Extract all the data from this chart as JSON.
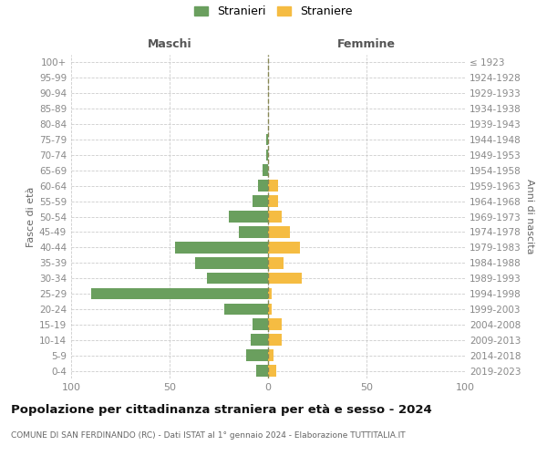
{
  "age_groups": [
    "0-4",
    "5-9",
    "10-14",
    "15-19",
    "20-24",
    "25-29",
    "30-34",
    "35-39",
    "40-44",
    "45-49",
    "50-54",
    "55-59",
    "60-64",
    "65-69",
    "70-74",
    "75-79",
    "80-84",
    "85-89",
    "90-94",
    "95-99",
    "100+"
  ],
  "birth_years": [
    "2019-2023",
    "2014-2018",
    "2009-2013",
    "2004-2008",
    "1999-2003",
    "1994-1998",
    "1989-1993",
    "1984-1988",
    "1979-1983",
    "1974-1978",
    "1969-1973",
    "1964-1968",
    "1959-1963",
    "1954-1958",
    "1949-1953",
    "1944-1948",
    "1939-1943",
    "1934-1938",
    "1929-1933",
    "1924-1928",
    "≤ 1923"
  ],
  "males": [
    6,
    11,
    9,
    8,
    22,
    90,
    31,
    37,
    47,
    15,
    20,
    8,
    5,
    3,
    1,
    1,
    0,
    0,
    0,
    0,
    0
  ],
  "females": [
    4,
    3,
    7,
    7,
    2,
    2,
    17,
    8,
    16,
    11,
    7,
    5,
    5,
    0,
    0,
    0,
    0,
    0,
    0,
    0,
    0
  ],
  "color_males": "#6a9f5e",
  "color_females": "#f5bc42",
  "title": "Popolazione per cittadinanza straniera per età e sesso - 2024",
  "subtitle": "COMUNE DI SAN FERDINANDO (RC) - Dati ISTAT al 1° gennaio 2024 - Elaborazione TUTTITALIA.IT",
  "xlabel_left": "Maschi",
  "xlabel_right": "Femmine",
  "ylabel_left": "Fasce di età",
  "ylabel_right": "Anni di nascita",
  "legend_males": "Stranieri",
  "legend_females": "Straniere",
  "xlim": 100,
  "background_color": "#ffffff",
  "grid_color": "#cccccc"
}
